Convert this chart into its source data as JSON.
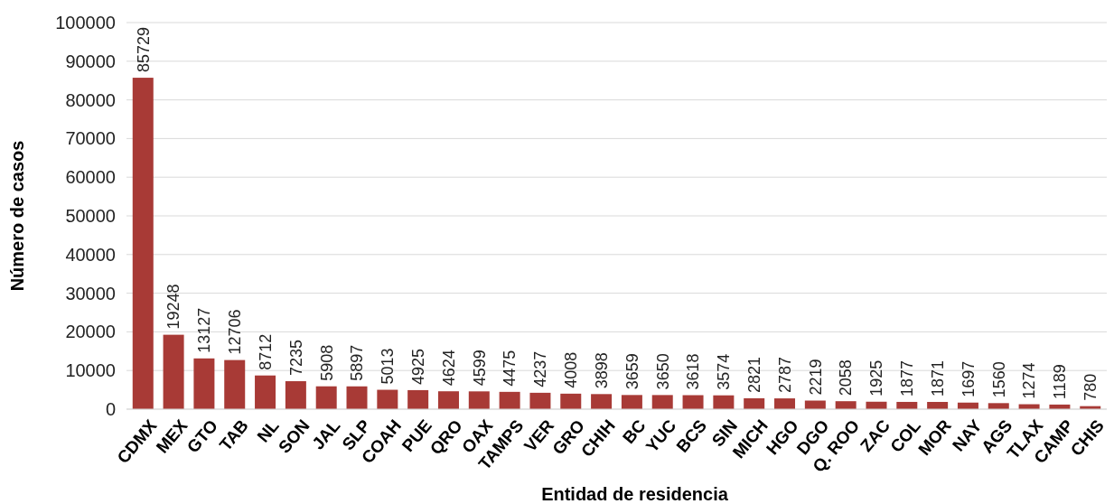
{
  "chart_data": {
    "type": "bar",
    "xlabel": "Entidad de residencia",
    "ylabel": "Número de casos",
    "categories": [
      "CDMX",
      "MEX",
      "GTO",
      "TAB",
      "NL",
      "SON",
      "JAL",
      "SLP",
      "COAH",
      "PUE",
      "QRO",
      "OAX",
      "TAMPS",
      "VER",
      "GRO",
      "CHIH",
      "BC",
      "YUC",
      "BCS",
      "SIN",
      "MICH",
      "HGO",
      "DGO",
      "Q. ROO",
      "ZAC",
      "COL",
      "MOR",
      "NAY",
      "AGS",
      "TLAX",
      "CAMP",
      "CHIS"
    ],
    "values": [
      85729,
      19248,
      13127,
      12706,
      8712,
      7235,
      5908,
      5897,
      5013,
      4925,
      4624,
      4599,
      4475,
      4237,
      4008,
      3898,
      3659,
      3650,
      3618,
      3574,
      2821,
      2787,
      2219,
      2058,
      1925,
      1877,
      1871,
      1697,
      1560,
      1274,
      1189,
      780
    ],
    "color": "#a83a36",
    "ylim": [
      0,
      100000
    ],
    "yticks": [
      0,
      10000,
      20000,
      30000,
      40000,
      50000,
      60000,
      70000,
      80000,
      90000,
      100000
    ],
    "grid": "y",
    "data_labels": true
  }
}
